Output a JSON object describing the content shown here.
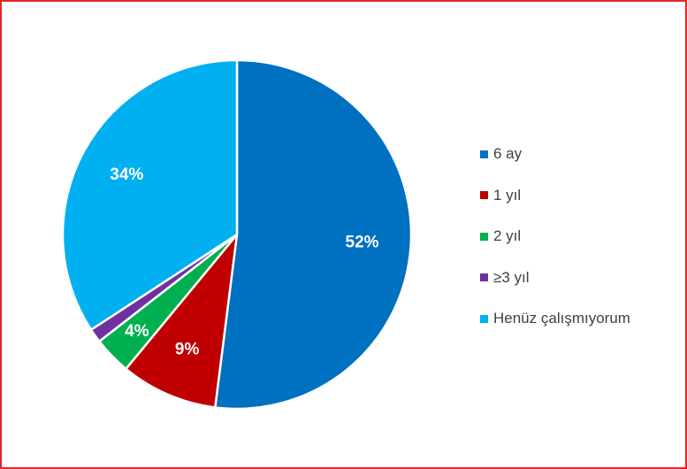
{
  "chart_data": {
    "type": "pie",
    "slices": [
      {
        "label": "6 ay",
        "value": 52,
        "display": "52%",
        "color": "#0070c0"
      },
      {
        "label": "1 yıl",
        "value": 9,
        "display": "9%",
        "color": "#c00000"
      },
      {
        "label": "2 yıl",
        "value": 3.5,
        "display": "4%",
        "color": "#00b050"
      },
      {
        "label": "≥3 yıl",
        "value": 1.3,
        "display": "",
        "color": "#7030a0"
      },
      {
        "label": "Henüz çalışmıyorum",
        "value": 34.2,
        "display": "34%",
        "color": "#00b0f0"
      }
    ],
    "legend_position": "right",
    "border_color": "#e3262a"
  }
}
